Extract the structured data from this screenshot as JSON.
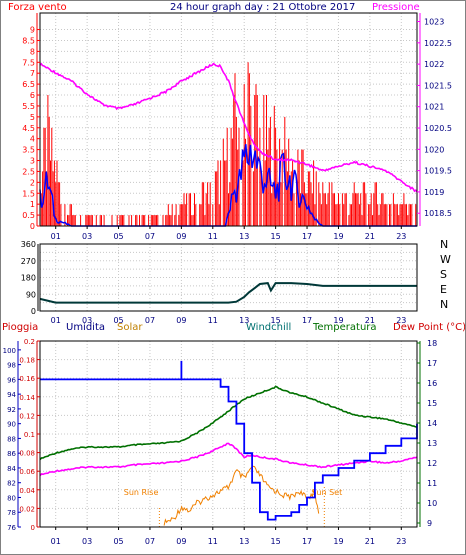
{
  "header": {
    "left_title": "Forza vento",
    "center_title": "24 hour graph day : 21 Ottobre 2017",
    "right_title": "Pressione"
  },
  "colors": {
    "frame": "#000000",
    "grid": "#c8c8c8",
    "wind": "#ff0000",
    "gust": "#0000ff",
    "pressure": "#ff00ff",
    "direction": "#003838",
    "humidity": "#0000ff",
    "temperature": "#007000",
    "dewpoint": "#ff00ff",
    "solar": "#f08000",
    "rain_axis": "#d00000",
    "humidity_axis": "#000080",
    "temp_axis": "#007000"
  },
  "labels": {
    "pioggia": "Pioggia",
    "umidita": "Umidita",
    "solar": "Solar",
    "windchill": "Windchill",
    "temperatura": "Temperatura",
    "dewpoint": "Dew Point (°C)",
    "sunrise": "Sun Rise",
    "sunset": "Sun Set",
    "compass": [
      "N",
      "W",
      "S",
      "E",
      "N"
    ]
  },
  "chart_data": [
    {
      "type": "bar",
      "title": "24 hour graph day : 21 Ottobre 2017",
      "x_ticks": [
        "01",
        "03",
        "05",
        "07",
        "09",
        "11",
        "13",
        "15",
        "17",
        "19",
        "21",
        "23"
      ],
      "x_range": [
        0,
        24
      ],
      "y_left_label": "Forza vento",
      "y_left_ticks": [
        "0",
        "0.5",
        "1",
        "1.5",
        "2",
        "2.5",
        "3",
        "3.5",
        "4",
        "4.5",
        "5",
        "5.5",
        "6",
        "6.5",
        "7",
        "7.5",
        "8",
        "8.5",
        "9"
      ],
      "y_left_range": [
        0,
        9.3
      ],
      "y_right_label": "Pressione",
      "y_right_ticks": [
        "1018.5",
        "1019",
        "1019.5",
        "1020",
        "1020.5",
        "1021",
        "1021.5",
        "1022",
        "1022.5",
        "1023"
      ],
      "y_right_range": [
        1018.2,
        1023.2
      ],
      "wind_profile": [
        [
          0,
          2
        ],
        [
          0.5,
          5
        ],
        [
          1,
          3
        ],
        [
          1.5,
          1
        ],
        [
          2,
          0.8
        ],
        [
          3,
          0.6
        ],
        [
          4,
          0.4
        ],
        [
          5,
          0.4
        ],
        [
          6,
          0.5
        ],
        [
          7,
          0.5
        ],
        [
          8,
          0.6
        ],
        [
          9,
          1
        ],
        [
          10,
          1.5
        ],
        [
          11,
          2
        ],
        [
          12,
          4
        ],
        [
          12.5,
          6
        ],
        [
          13,
          8
        ],
        [
          13.5,
          6.5
        ],
        [
          14,
          5
        ],
        [
          15,
          4.5
        ],
        [
          16,
          3.5
        ],
        [
          17,
          2.5
        ],
        [
          18,
          2
        ],
        [
          19,
          1.5
        ],
        [
          20,
          1.5
        ],
        [
          21,
          1.5
        ],
        [
          22,
          1.5
        ],
        [
          23,
          1.5
        ],
        [
          24,
          1
        ]
      ],
      "gust_profile": [
        [
          0,
          1.2
        ],
        [
          0.5,
          2
        ],
        [
          1,
          0.3
        ],
        [
          2,
          0
        ],
        [
          11.8,
          0
        ],
        [
          12.3,
          1.5
        ],
        [
          12.7,
          2
        ],
        [
          13,
          3
        ],
        [
          13.5,
          3.5
        ],
        [
          14,
          2.5
        ],
        [
          14.5,
          2
        ],
        [
          15,
          1.5
        ],
        [
          15.5,
          2.5
        ],
        [
          16,
          2
        ],
        [
          16.5,
          1.5
        ],
        [
          17,
          1
        ],
        [
          17.5,
          0.3
        ],
        [
          18,
          0
        ],
        [
          24,
          0
        ]
      ],
      "pressure": [
        [
          0,
          1022.0
        ],
        [
          1,
          1021.8
        ],
        [
          2,
          1021.6
        ],
        [
          3,
          1021.3
        ],
        [
          4,
          1021.05
        ],
        [
          5,
          1020.95
        ],
        [
          6,
          1021.05
        ],
        [
          7,
          1021.2
        ],
        [
          8,
          1021.35
        ],
        [
          9,
          1021.6
        ],
        [
          10,
          1021.8
        ],
        [
          11,
          1022.0
        ],
        [
          11.5,
          1021.95
        ],
        [
          12,
          1021.6
        ],
        [
          12.5,
          1021.1
        ],
        [
          13,
          1020.6
        ],
        [
          13.5,
          1020.2
        ],
        [
          14,
          1019.95
        ],
        [
          14.5,
          1019.85
        ],
        [
          15,
          1019.75
        ],
        [
          16,
          1019.75
        ],
        [
          17,
          1019.65
        ],
        [
          18,
          1019.5
        ],
        [
          19,
          1019.6
        ],
        [
          20,
          1019.7
        ],
        [
          21,
          1019.6
        ],
        [
          22,
          1019.5
        ],
        [
          23,
          1019.25
        ],
        [
          24,
          1019.0
        ]
      ]
    },
    {
      "type": "line",
      "x_ticks": [
        "01",
        "03",
        "05",
        "07",
        "09",
        "11",
        "13",
        "15",
        "17",
        "19",
        "21",
        "23"
      ],
      "y_ticks": [
        "0",
        "45",
        "90",
        "135",
        "180",
        "225",
        "270",
        "315",
        "360"
      ],
      "y_range": [
        0,
        360
      ],
      "y_right_labels": [
        "N",
        "W",
        "S",
        "E",
        "N"
      ],
      "direction": [
        [
          0,
          65
        ],
        [
          1,
          45
        ],
        [
          3,
          45
        ],
        [
          6,
          45
        ],
        [
          9,
          45
        ],
        [
          12,
          45
        ],
        [
          12.5,
          50
        ],
        [
          13,
          75
        ],
        [
          13.3,
          100
        ],
        [
          13.7,
          125
        ],
        [
          14,
          145
        ],
        [
          14.5,
          150
        ],
        [
          14.7,
          110
        ],
        [
          15,
          150
        ],
        [
          16,
          150
        ],
        [
          17,
          145
        ],
        [
          18,
          135
        ],
        [
          20,
          135
        ],
        [
          22,
          135
        ],
        [
          24,
          135
        ]
      ]
    },
    {
      "type": "line",
      "x_ticks": [
        "01",
        "03",
        "05",
        "07",
        "09",
        "11",
        "13",
        "15",
        "17",
        "19",
        "21",
        "23"
      ],
      "rain_ticks": [
        "0",
        "0.02",
        "0.04",
        "0.06",
        "0.08",
        "0.1",
        "0.12",
        "0.14",
        "0.16",
        "0.18",
        "0.2"
      ],
      "rain_range": [
        0,
        0.2
      ],
      "humidity_ticks": [
        "76",
        "78",
        "80",
        "82",
        "84",
        "86",
        "88",
        "90",
        "92",
        "94",
        "96",
        "98",
        "100"
      ],
      "humidity_range": [
        76,
        101.2
      ],
      "temp_ticks": [
        "9",
        "10",
        "11",
        "12",
        "13",
        "14",
        "15",
        "16",
        "17",
        "18"
      ],
      "temp_range": [
        8.8,
        18.1
      ],
      "humidity": [
        [
          0,
          96
        ],
        [
          3,
          96
        ],
        [
          6,
          96
        ],
        [
          8,
          96
        ],
        [
          9,
          96
        ],
        [
          9,
          98.5
        ],
        [
          9,
          96
        ],
        [
          11,
          96
        ],
        [
          11.5,
          95
        ],
        [
          12,
          93
        ],
        [
          12.5,
          90
        ],
        [
          13,
          86
        ],
        [
          13.5,
          82
        ],
        [
          14,
          78
        ],
        [
          14.5,
          77
        ],
        [
          15,
          77.5
        ],
        [
          16,
          78
        ],
        [
          16.5,
          79
        ],
        [
          17,
          80
        ],
        [
          17.5,
          82
        ],
        [
          18,
          83
        ],
        [
          19,
          84
        ],
        [
          20,
          85
        ],
        [
          21,
          86
        ],
        [
          22,
          87
        ],
        [
          23,
          88
        ],
        [
          24,
          90
        ]
      ],
      "temperature": [
        [
          0,
          12.2
        ],
        [
          1,
          12.5
        ],
        [
          2,
          12.7
        ],
        [
          3,
          12.8
        ],
        [
          5,
          12.8
        ],
        [
          6,
          12.9
        ],
        [
          8,
          13
        ],
        [
          9,
          13.1
        ],
        [
          10,
          13.5
        ],
        [
          11,
          14
        ],
        [
          12,
          14.6
        ],
        [
          13,
          15.2
        ],
        [
          14,
          15.5
        ],
        [
          15,
          15.8
        ],
        [
          16,
          15.5
        ],
        [
          17,
          15.3
        ],
        [
          18,
          15
        ],
        [
          19,
          14.7
        ],
        [
          20,
          14.4
        ],
        [
          21,
          14.3
        ],
        [
          22,
          14.2
        ],
        [
          23,
          14
        ],
        [
          24,
          13.8
        ]
      ],
      "dewpoint": [
        [
          0,
          11.4
        ],
        [
          1,
          11.6
        ],
        [
          2,
          11.7
        ],
        [
          3,
          11.8
        ],
        [
          4,
          11.8
        ],
        [
          5,
          11.8
        ],
        [
          6,
          11.9
        ],
        [
          8,
          12
        ],
        [
          9,
          12.1
        ],
        [
          10,
          12.3
        ],
        [
          11,
          12.6
        ],
        [
          12,
          13
        ],
        [
          12.5,
          12.7
        ],
        [
          13,
          12.3
        ],
        [
          13.5,
          12.4
        ],
        [
          14,
          12.3
        ],
        [
          15,
          12.2
        ],
        [
          16,
          12
        ],
        [
          17,
          11.9
        ],
        [
          18,
          11.8
        ],
        [
          19,
          11.9
        ],
        [
          20,
          12
        ],
        [
          21,
          12.1
        ],
        [
          22,
          12
        ],
        [
          23,
          12.1
        ],
        [
          24,
          12.3
        ]
      ],
      "solar": [
        [
          7.9,
          9
        ],
        [
          8.5,
          9.2
        ],
        [
          9,
          9.8
        ],
        [
          9.5,
          9.6
        ],
        [
          10,
          10
        ],
        [
          10.5,
          10.2
        ],
        [
          11,
          10.4
        ],
        [
          11.5,
          10.6
        ],
        [
          12,
          10.8
        ],
        [
          12.5,
          11.6
        ],
        [
          13,
          11.2
        ],
        [
          13.5,
          11.8
        ],
        [
          14,
          11.4
        ],
        [
          14.5,
          10.8
        ],
        [
          15,
          10.6
        ],
        [
          15.5,
          10.4
        ],
        [
          16,
          10.3
        ],
        [
          16.5,
          10.6
        ],
        [
          17,
          10.2
        ],
        [
          17.5,
          10.6
        ],
        [
          17.8,
          9
        ]
      ],
      "sunrise_hour": 7.6,
      "sunset_hour": 18.1
    }
  ]
}
